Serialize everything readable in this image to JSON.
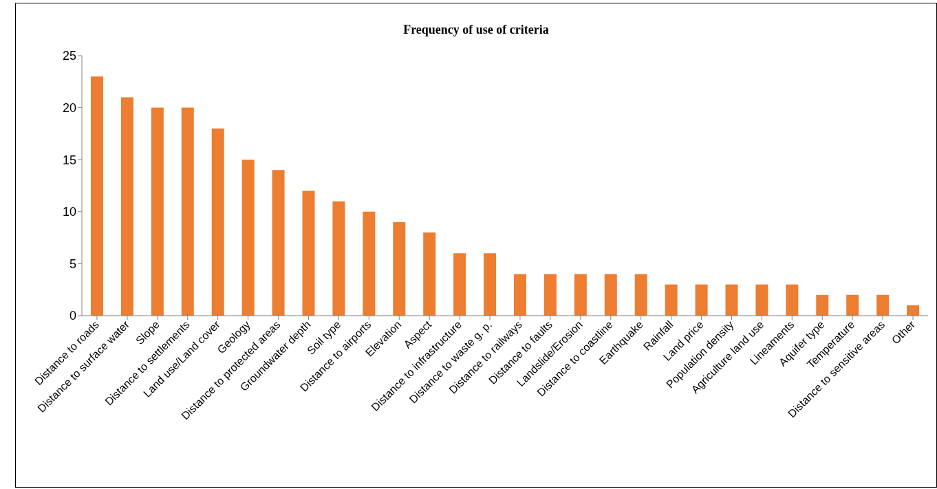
{
  "chart_data": {
    "type": "bar",
    "title": "Frequency of use of criteria",
    "categories": [
      "Distance to roads",
      "Distance to surface water",
      "Slope",
      "Distance to settlements",
      "Land use/Land cover",
      "Geology",
      "Distance to protected areas",
      "Groundwater depth",
      "Soil type",
      "Distance to airports",
      "Elevation",
      "Aspect",
      "Distance to infrastructure",
      "Distance to waste g. p.",
      "Distance to railways",
      "Distance to faults",
      "Landslide/Erosion",
      "Distance to coastline",
      "Earthquake",
      "Rainfall",
      "Land price",
      "Population density",
      "Agriculture land use",
      "Lineaments",
      "Aquifer type",
      "Temperature",
      "Distance to sensitive areas",
      "Other"
    ],
    "values": [
      23,
      21,
      20,
      20,
      18,
      15,
      14,
      12,
      11,
      10,
      9,
      8,
      6,
      6,
      4,
      4,
      4,
      4,
      4,
      3,
      3,
      3,
      3,
      3,
      2,
      2,
      2,
      1
    ],
    "color": "#ed7d31",
    "ylim": [
      0,
      25
    ],
    "yticks": [
      0,
      5,
      10,
      15,
      20,
      25
    ],
    "grid": false,
    "legend": false
  }
}
